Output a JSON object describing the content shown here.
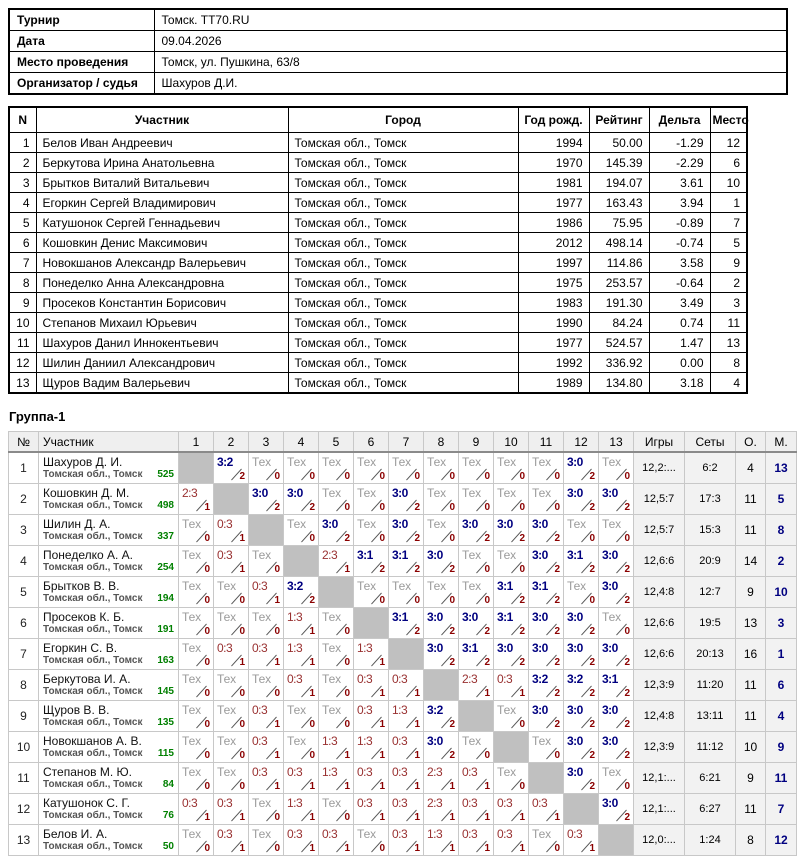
{
  "colors": {
    "win": "#000080",
    "loss": "#993030",
    "tech": "#9a9a9a",
    "sub": "#8b0000",
    "rating": "#008000",
    "place": "#000080",
    "diag": "#c0c0c0"
  },
  "info": {
    "rows": [
      {
        "label": "Турнир",
        "value": "Томск. TT70.RU"
      },
      {
        "label": "Дата",
        "value": "09.04.2026"
      },
      {
        "label": "Место проведения",
        "value": "Томск, ул. Пушкина, 63/8"
      },
      {
        "label": "Организатор / судья",
        "value": "Шахуров Д.И."
      }
    ]
  },
  "participants": {
    "headers": [
      "N",
      "Участник",
      "Город",
      "Год рожд.",
      "Рейтинг",
      "Дельта",
      "Место"
    ],
    "rows": [
      [
        "1",
        "Белов Иван Андреевич",
        "Томская обл., Томск",
        "1994",
        "50.00",
        "-1.29",
        "12"
      ],
      [
        "2",
        "Беркутова Ирина Анатольевна",
        "Томская обл., Томск",
        "1970",
        "145.39",
        "-2.29",
        "6"
      ],
      [
        "3",
        "Брытков Виталий Витальевич",
        "Томская обл., Томск",
        "1981",
        "194.07",
        "3.61",
        "10"
      ],
      [
        "4",
        "Егоркин Сергей Владимирович",
        "Томская обл., Томск",
        "1977",
        "163.43",
        "3.94",
        "1"
      ],
      [
        "5",
        "Катушонок Сергей Геннадьевич",
        "Томская обл., Томск",
        "1986",
        "75.95",
        "-0.89",
        "7"
      ],
      [
        "6",
        "Кошовкин Денис Максимович",
        "Томская обл., Томск",
        "2012",
        "498.14",
        "-0.74",
        "5"
      ],
      [
        "7",
        "Новокшанов Александр Валерьевич",
        "Томская обл., Томск",
        "1997",
        "114.86",
        "3.58",
        "9"
      ],
      [
        "8",
        "Понеделко Анна Александровна",
        "Томская обл., Томск",
        "1975",
        "253.57",
        "-0.64",
        "2"
      ],
      [
        "9",
        "Просеков Константин Борисович",
        "Томская обл., Томск",
        "1983",
        "191.30",
        "3.49",
        "3"
      ],
      [
        "10",
        "Степанов Михаил Юрьевич",
        "Томская обл., Томск",
        "1990",
        "84.24",
        "0.74",
        "11"
      ],
      [
        "11",
        "Шахуров Данил Иннокентьевич",
        "Томская обл., Томск",
        "1977",
        "524.57",
        "1.47",
        "13"
      ],
      [
        "12",
        "Шилин Даниил Александрович",
        "Томская обл., Томск",
        "1992",
        "336.92",
        "0.00",
        "8"
      ],
      [
        "13",
        "Щуров Вадим Валерьевич",
        "Томская обл., Томск",
        "1989",
        "134.80",
        "3.18",
        "4"
      ]
    ]
  },
  "group": {
    "title": "Группа-1",
    "headers": {
      "num": "№",
      "name": "Участник",
      "cols": [
        "1",
        "2",
        "3",
        "4",
        "5",
        "6",
        "7",
        "8",
        "9",
        "10",
        "11",
        "12",
        "13"
      ],
      "games": "Игры",
      "sets": "Сеты",
      "points": "О.",
      "place": "М."
    },
    "rows": [
      {
        "n": "1",
        "name": "Шахуров Д. И.",
        "region": "Томская обл., Томск",
        "rating": "525",
        "cells": [
          "d",
          "w|3:2|2",
          "t|Тех|0",
          "t|Тех|0",
          "t|Тех|0",
          "t|Тех|0",
          "t|Тех|0",
          "t|Тех|0",
          "t|Тех|0",
          "t|Тех|0",
          "t|Тех|0",
          "w|3:0|2",
          "t|Тех|0"
        ],
        "games": "12,2:...",
        "sets": "6:2",
        "pts": "4",
        "place": "13"
      },
      {
        "n": "2",
        "name": "Кошовкин Д. М.",
        "region": "Томская обл., Томск",
        "rating": "498",
        "cells": [
          "l|2:3|1",
          "d",
          "w|3:0|2",
          "w|3:0|2",
          "t|Тех|0",
          "t|Тех|0",
          "w|3:0|2",
          "t|Тех|0",
          "t|Тех|0",
          "t|Тех|0",
          "t|Тех|0",
          "w|3:0|2",
          "w|3:0|2"
        ],
        "games": "12,5:7",
        "sets": "17:3",
        "pts": "11",
        "place": "5"
      },
      {
        "n": "3",
        "name": "Шилин Д. А.",
        "region": "Томская обл., Томск",
        "rating": "337",
        "cells": [
          "t|Тех|0",
          "l|0:3|1",
          "d",
          "t|Тех|0",
          "w|3:0|2",
          "t|Тех|0",
          "w|3:0|2",
          "t|Тех|0",
          "w|3:0|2",
          "w|3:0|2",
          "w|3:0|2",
          "t|Тех|0",
          "t|Тех|0"
        ],
        "games": "12,5:7",
        "sets": "15:3",
        "pts": "11",
        "place": "8"
      },
      {
        "n": "4",
        "name": "Понеделко А. А.",
        "region": "Томская обл., Томск",
        "rating": "254",
        "cells": [
          "t|Тех|0",
          "l|0:3|1",
          "t|Тех|0",
          "d",
          "l|2:3|1",
          "w|3:1|2",
          "w|3:1|2",
          "w|3:0|2",
          "t|Тех|0",
          "t|Тех|0",
          "w|3:0|2",
          "w|3:1|2",
          "w|3:0|2"
        ],
        "games": "12,6:6",
        "sets": "20:9",
        "pts": "14",
        "place": "2"
      },
      {
        "n": "5",
        "name": "Брытков В. В.",
        "region": "Томская обл., Томск",
        "rating": "194",
        "cells": [
          "t|Тех|0",
          "t|Тех|0",
          "l|0:3|1",
          "w|3:2|2",
          "d",
          "t|Тех|0",
          "t|Тех|0",
          "t|Тех|0",
          "t|Тех|0",
          "w|3:1|2",
          "w|3:1|2",
          "t|Тех|0",
          "w|3:0|2"
        ],
        "games": "12,4:8",
        "sets": "12:7",
        "pts": "9",
        "place": "10"
      },
      {
        "n": "6",
        "name": "Просеков К. Б.",
        "region": "Томская обл., Томск",
        "rating": "191",
        "cells": [
          "t|Тех|0",
          "t|Тех|0",
          "t|Тех|0",
          "l|1:3|1",
          "t|Тех|0",
          "d",
          "w|3:1|2",
          "w|3:0|2",
          "w|3:0|2",
          "w|3:1|2",
          "w|3:0|2",
          "w|3:0|2",
          "t|Тех|0"
        ],
        "games": "12,6:6",
        "sets": "19:5",
        "pts": "13",
        "place": "3"
      },
      {
        "n": "7",
        "name": "Егоркин С. В.",
        "region": "Томская обл., Томск",
        "rating": "163",
        "cells": [
          "t|Тех|0",
          "l|0:3|1",
          "l|0:3|1",
          "l|1:3|1",
          "t|Тех|0",
          "l|1:3|1",
          "d",
          "w|3:0|2",
          "w|3:1|2",
          "w|3:0|2",
          "w|3:0|2",
          "w|3:0|2",
          "w|3:0|2"
        ],
        "games": "12,6:6",
        "sets": "20:13",
        "pts": "16",
        "place": "1"
      },
      {
        "n": "8",
        "name": "Беркутова И. А.",
        "region": "Томская обл., Томск",
        "rating": "145",
        "cells": [
          "t|Тех|0",
          "t|Тех|0",
          "t|Тех|0",
          "l|0:3|1",
          "t|Тех|0",
          "l|0:3|1",
          "l|0:3|1",
          "d",
          "l|2:3|1",
          "l|0:3|1",
          "w|3:2|2",
          "w|3:2|2",
          "w|3:1|2"
        ],
        "games": "12,3:9",
        "sets": "11:20",
        "pts": "11",
        "place": "6"
      },
      {
        "n": "9",
        "name": "Щуров В. В.",
        "region": "Томская обл., Томск",
        "rating": "135",
        "cells": [
          "t|Тех|0",
          "t|Тех|0",
          "l|0:3|1",
          "t|Тех|0",
          "t|Тех|0",
          "l|0:3|1",
          "l|1:3|1",
          "w|3:2|2",
          "d",
          "t|Тех|0",
          "w|3:0|2",
          "w|3:0|2",
          "w|3:0|2"
        ],
        "games": "12,4:8",
        "sets": "13:11",
        "pts": "11",
        "place": "4"
      },
      {
        "n": "10",
        "name": "Новокшанов А. В.",
        "region": "Томская обл., Томск",
        "rating": "115",
        "cells": [
          "t|Тех|0",
          "t|Тех|0",
          "l|0:3|1",
          "t|Тех|0",
          "l|1:3|1",
          "l|1:3|1",
          "l|0:3|1",
          "w|3:0|2",
          "t|Тех|0",
          "d",
          "t|Тех|0",
          "w|3:0|2",
          "w|3:0|2"
        ],
        "games": "12,3:9",
        "sets": "11:12",
        "pts": "10",
        "place": "9"
      },
      {
        "n": "11",
        "name": "Степанов М. Ю.",
        "region": "Томская обл., Томск",
        "rating": "84",
        "cells": [
          "t|Тех|0",
          "t|Тех|0",
          "l|0:3|1",
          "l|0:3|1",
          "l|1:3|1",
          "l|0:3|1",
          "l|0:3|1",
          "l|2:3|1",
          "l|0:3|1",
          "t|Тех|0",
          "d",
          "w|3:0|2",
          "t|Тех|0"
        ],
        "games": "12,1:...",
        "sets": "6:21",
        "pts": "9",
        "place": "11"
      },
      {
        "n": "12",
        "name": "Катушонок С. Г.",
        "region": "Томская обл., Томск",
        "rating": "76",
        "cells": [
          "l|0:3|1",
          "l|0:3|1",
          "t|Тех|0",
          "l|1:3|1",
          "t|Тех|0",
          "l|0:3|1",
          "l|0:3|1",
          "l|2:3|1",
          "l|0:3|1",
          "l|0:3|1",
          "l|0:3|1",
          "d",
          "w|3:0|2"
        ],
        "games": "12,1:...",
        "sets": "6:27",
        "pts": "11",
        "place": "7"
      },
      {
        "n": "13",
        "name": "Белов И. А.",
        "region": "Томская обл., Томск",
        "rating": "50",
        "cells": [
          "t|Тех|0",
          "l|0:3|1",
          "t|Тех|0",
          "l|0:3|1",
          "l|0:3|1",
          "t|Тех|0",
          "l|0:3|1",
          "l|1:3|1",
          "l|0:3|1",
          "l|0:3|1",
          "t|Тех|0",
          "l|0:3|1",
          "d"
        ],
        "games": "12,0:...",
        "sets": "1:24",
        "pts": "8",
        "place": "12"
      }
    ]
  }
}
